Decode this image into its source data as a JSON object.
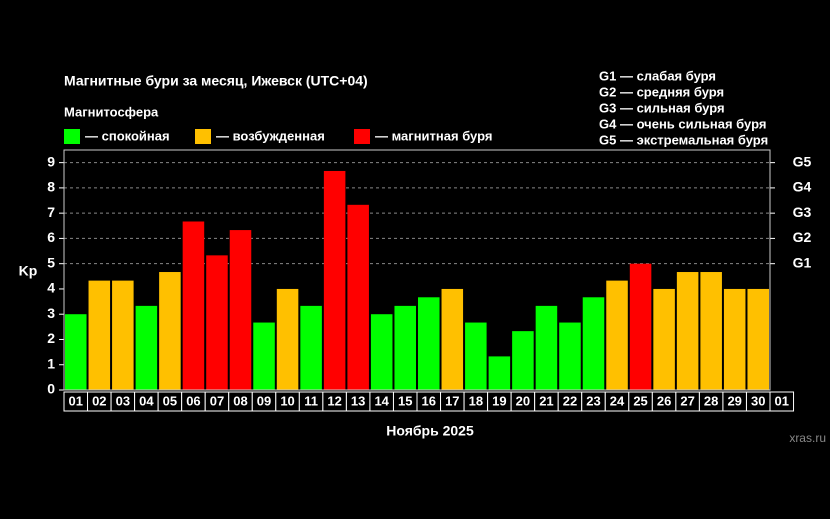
{
  "chart_data": {
    "type": "bar",
    "title": "Магнитные бури за месяц, Ижевск (UTC+04)",
    "subtitle": "Магнитосфера",
    "legend": [
      {
        "label": "— спокойная",
        "color": "#00ff00"
      },
      {
        "label": "— возбужденная",
        "color": "#ffc000"
      },
      {
        "label": "— магнитная буря",
        "color": "#ff0000"
      }
    ],
    "storm_levels": [
      "G1 — слабая буря",
      "G2 — средняя буря",
      "G3 — сильная буря",
      "G4 — очень сильная буря",
      "G5 — экстремальная буря"
    ],
    "x_label": "Ноябрь 2025",
    "y_label": "Kp",
    "watermark": "xras.ru",
    "categories": [
      "01",
      "02",
      "03",
      "04",
      "05",
      "06",
      "07",
      "08",
      "09",
      "10",
      "11",
      "12",
      "13",
      "14",
      "15",
      "16",
      "17",
      "18",
      "19",
      "20",
      "21",
      "22",
      "23",
      "24",
      "25",
      "26",
      "27",
      "28",
      "29",
      "30",
      "01"
    ],
    "values": [
      3.0,
      4.33,
      4.33,
      3.33,
      4.67,
      6.67,
      5.33,
      6.33,
      2.67,
      4.0,
      3.33,
      8.67,
      7.33,
      3.0,
      3.33,
      3.67,
      4.0,
      2.67,
      1.33,
      2.33,
      3.33,
      2.67,
      3.67,
      4.33,
      5.0,
      4.0,
      4.67,
      4.67,
      4.0,
      4.0,
      null
    ],
    "colors": [
      "#00ff00",
      "#ffc000",
      "#ffc000",
      "#00ff00",
      "#ffc000",
      "#ff0000",
      "#ff0000",
      "#ff0000",
      "#00ff00",
      "#ffc000",
      "#00ff00",
      "#ff0000",
      "#ff0000",
      "#00ff00",
      "#00ff00",
      "#00ff00",
      "#ffc000",
      "#00ff00",
      "#00ff00",
      "#00ff00",
      "#00ff00",
      "#00ff00",
      "#00ff00",
      "#ffc000",
      "#ff0000",
      "#ffc000",
      "#ffc000",
      "#ffc000",
      "#ffc000",
      "#ffc000",
      null
    ],
    "ylim": [
      0,
      9.5
    ],
    "yticks": [
      0,
      1,
      2,
      3,
      4,
      5,
      6,
      7,
      8,
      9
    ],
    "y2lim": [
      0,
      9.5
    ],
    "y2ticks": [
      {
        "value": 5,
        "label": "G1"
      },
      {
        "value": 6,
        "label": "G2"
      },
      {
        "value": 7,
        "label": "G3"
      },
      {
        "value": 8,
        "label": "G4"
      },
      {
        "value": 9,
        "label": "G5"
      }
    ],
    "grid": true
  }
}
